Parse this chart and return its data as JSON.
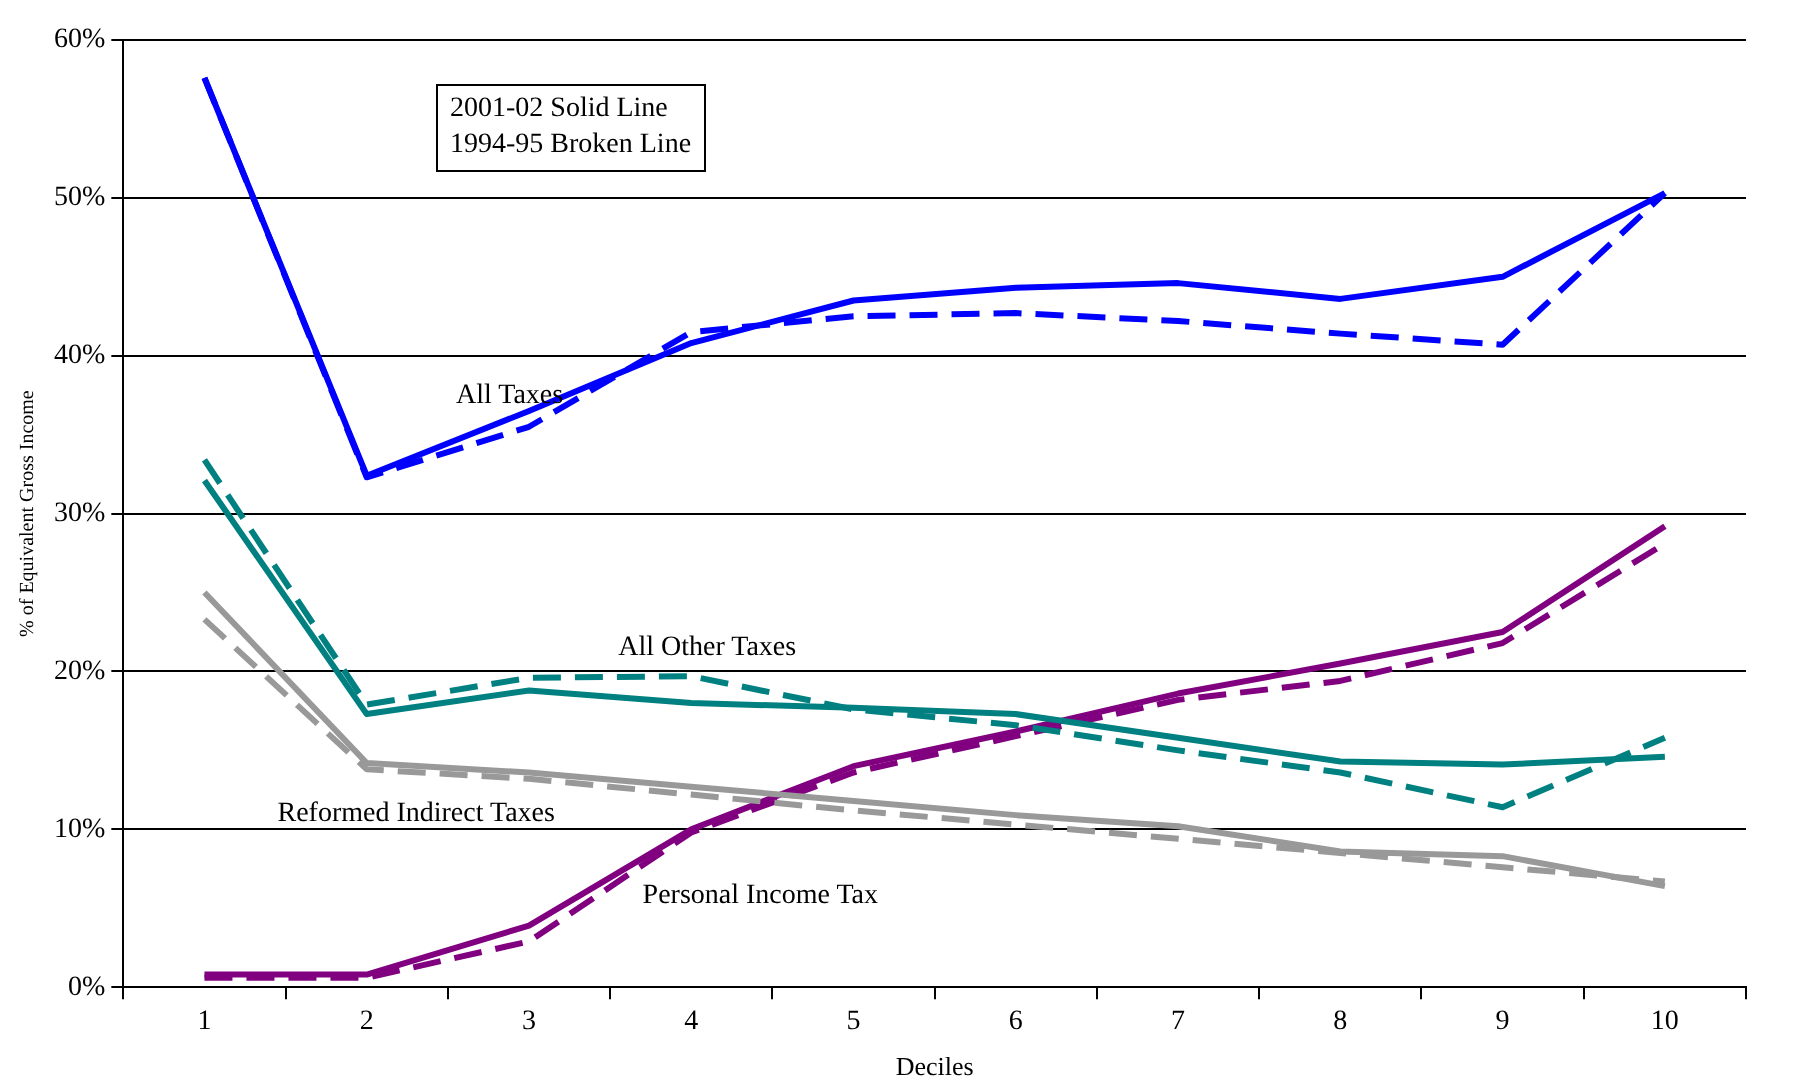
{
  "chart_data": {
    "type": "line",
    "xlabel": "Deciles",
    "ylabel": "% of Equivalent Gross Income",
    "categories": [
      "1",
      "2",
      "3",
      "4",
      "5",
      "6",
      "7",
      "8",
      "9",
      "10"
    ],
    "series": [
      {
        "name": "All Taxes",
        "color": "#0000ff",
        "line_style": "solid",
        "values": [
          57.6,
          32.4,
          36.5,
          40.8,
          43.5,
          44.3,
          44.6,
          43.6,
          45.0,
          50.3
        ]
      },
      {
        "color": "#0000ff",
        "line_style": "dashed",
        "values": [
          57.6,
          32.3,
          35.5,
          41.5,
          42.5,
          42.7,
          42.2,
          41.4,
          40.7,
          50.3
        ]
      },
      {
        "name": "All Other Taxes",
        "color": "#008080",
        "line_style": "solid",
        "values": [
          32.1,
          17.3,
          18.8,
          18.0,
          17.7,
          17.3,
          15.8,
          14.3,
          14.1,
          14.6
        ]
      },
      {
        "color": "#008080",
        "line_style": "dashed",
        "values": [
          33.4,
          17.9,
          19.6,
          19.7,
          17.6,
          16.6,
          15.0,
          13.6,
          11.4,
          15.8
        ]
      },
      {
        "name": "Reformed Indirect Taxes",
        "color": "#999999",
        "line_style": "solid",
        "values": [
          25.0,
          14.2,
          13.6,
          12.7,
          11.8,
          10.9,
          10.2,
          8.6,
          8.3,
          6.4
        ]
      },
      {
        "color": "#999999",
        "line_style": "dashed",
        "values": [
          23.3,
          13.8,
          13.2,
          12.2,
          11.2,
          10.3,
          9.4,
          8.5,
          7.6,
          6.7
        ]
      },
      {
        "name": "Personal Income Tax",
        "color": "#800080",
        "line_style": "solid",
        "values": [
          0.8,
          0.8,
          3.9,
          10.0,
          14.0,
          16.2,
          18.6,
          20.5,
          22.5,
          29.2
        ]
      },
      {
        "color": "#800080",
        "line_style": "dashed",
        "values": [
          0.6,
          0.6,
          2.9,
          9.8,
          13.6,
          15.9,
          18.2,
          19.4,
          21.8,
          28.1
        ]
      }
    ],
    "ylim": [
      0,
      60
    ],
    "yticks": [
      {
        "value": 0,
        "label": "0%"
      },
      {
        "value": 10,
        "label": "10%"
      },
      {
        "value": 20,
        "label": "20%"
      },
      {
        "value": 30,
        "label": "30%"
      },
      {
        "value": 40,
        "label": "40%"
      },
      {
        "value": 50,
        "label": "50%"
      },
      {
        "value": 60,
        "label": "60%"
      }
    ],
    "grid": "y",
    "marker": "none",
    "annotations": [
      "2001-02 Solid Line\n1994-95 Broken Line"
    ]
  }
}
